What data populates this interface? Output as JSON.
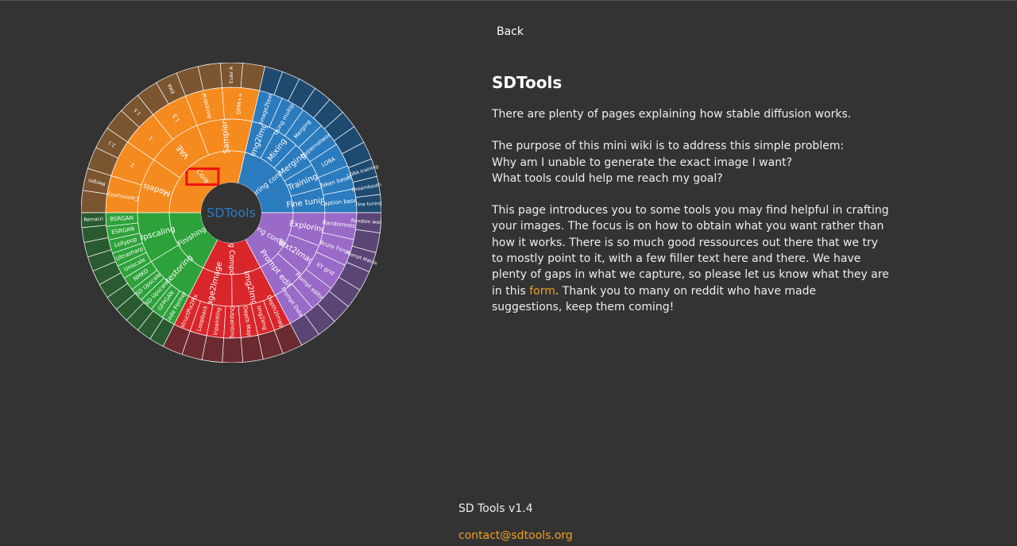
{
  "nav": {
    "back_label": "Back"
  },
  "content": {
    "title": "SDTools",
    "intro": "There are plenty of pages explaining how stable diffusion works.",
    "purpose_lines": [
      "The purpose of this mini wiki is to address this simple problem:",
      "Why am I unable to generate the exact image I want?",
      "What tools could help me reach my goal?"
    ],
    "description_before_link": "This page introduces you to some tools you may find helpful in crafting your images. The focus is on how to obtain what you want rather than how it works. There is so much good ressources out there that we try to mostly point to it, with a few filler text here and there. We have plenty of gaps in what we capture, so please let us know what they are in this ",
    "form_link_label": "form",
    "description_after_link": ". Thank you to many on reddit who have made suggestions, keep them coming!"
  },
  "footer": {
    "version": "SD Tools v1.4",
    "contact": "contact@sdtools.org"
  },
  "sunburst": {
    "center_label": "SDTools",
    "colors": {
      "core": "#f58a1f",
      "core_dark": "#7a5530",
      "capture": "#2b7bbf",
      "capture_dark": "#1f4a70",
      "explore": "#9a6ac8",
      "explore_dark": "#5a4575",
      "edit": "#d9262b",
      "edit_dark": "#6a2a30",
      "finish": "#2ea23a",
      "finish_dark": "#2a5a30",
      "center": "#333333",
      "highlight": "#ee1111"
    },
    "highlighted": "Core",
    "ring1": [
      {
        "label": "Core",
        "group": "core"
      },
      {
        "label": "Capturing concepts",
        "group": "capture"
      },
      {
        "label": "Exploring composition",
        "group": "explore"
      },
      {
        "label": "Editing Composition",
        "group": "edit"
      },
      {
        "label": "Finishing",
        "group": "finish"
      }
    ],
    "ring2": [
      {
        "label": "Models",
        "group": "core"
      },
      {
        "label": "VAE",
        "group": "core"
      },
      {
        "label": "Samplers",
        "group": "core"
      },
      {
        "label": "Img2Img",
        "group": "capture"
      },
      {
        "label": "Mixing",
        "group": "capture"
      },
      {
        "label": "Merging",
        "group": "capture"
      },
      {
        "label": "Training",
        "group": "capture"
      },
      {
        "label": "Fine tuning",
        "group": "capture"
      },
      {
        "label": "Exploring",
        "group": "explore"
      },
      {
        "label": "Text2Image",
        "group": "explore"
      },
      {
        "label": "Prompt editing",
        "group": "explore"
      },
      {
        "label": "Img2Img",
        "group": "edit"
      },
      {
        "label": "Image2Image",
        "group": "edit"
      },
      {
        "label": "Restoring",
        "group": "finish"
      },
      {
        "label": "Upscaling",
        "group": "finish"
      }
    ],
    "ring3": [
      {
        "label": "Community",
        "group": "core"
      },
      {
        "label": "2",
        "group": "core"
      },
      {
        "label": "1",
        "group": "core"
      },
      {
        "label": "1.5",
        "group": "core"
      },
      {
        "label": "Ancestral",
        "group": "core"
      },
      {
        "label": "DPM++",
        "group": "core"
      },
      {
        "label": "Image2text",
        "group": "capture"
      },
      {
        "label": "Using multiple",
        "group": "capture"
      },
      {
        "label": "Merging",
        "group": "capture"
      },
      {
        "label": "Hypernetwork",
        "group": "capture"
      },
      {
        "label": "LORA",
        "group": "capture"
      },
      {
        "label": "Token based",
        "group": "capture"
      },
      {
        "label": "Caption based",
        "group": "capture"
      },
      {
        "label": "Randomness",
        "group": "explore"
      },
      {
        "label": "Brute Force",
        "group": "explore"
      },
      {
        "label": "XY grid",
        "group": "explore"
      },
      {
        "label": "Prompt editing",
        "group": "explore"
      },
      {
        "label": "Prompt Delay",
        "group": "explore"
      },
      {
        "label": "Depth2Image",
        "group": "edit"
      },
      {
        "label": "Img2Img",
        "group": "edit"
      },
      {
        "label": "Depth Map",
        "group": "edit"
      },
      {
        "label": "Outpainting",
        "group": "edit"
      },
      {
        "label": "Inpainting",
        "group": "edit"
      },
      {
        "label": "Loopback",
        "group": "edit"
      },
      {
        "label": "InstructPix2Pix",
        "group": "edit"
      },
      {
        "label": "Code Former",
        "group": "finish"
      },
      {
        "label": "GFPGAN",
        "group": "finish"
      },
      {
        "label": "SD Upscale",
        "group": "finish"
      },
      {
        "label": "SD Upscale",
        "group": "finish"
      },
      {
        "label": "NMKD",
        "group": "finish"
      },
      {
        "label": "Uniscale",
        "group": "finish"
      },
      {
        "label": "Ultrasharp",
        "group": "finish"
      },
      {
        "label": "Lollypop",
        "group": "finish"
      },
      {
        "label": "ESRGAN",
        "group": "finish"
      },
      {
        "label": "BSRGAN",
        "group": "finish"
      }
    ],
    "ring4": [
      {
        "label": "",
        "group": "core"
      },
      {
        "label": "Merges",
        "group": "core"
      },
      {
        "label": "",
        "group": "core"
      },
      {
        "label": "2.1",
        "group": "core"
      },
      {
        "label": "",
        "group": "core"
      },
      {
        "label": "1.5",
        "group": "core"
      },
      {
        "label": "",
        "group": "core"
      },
      {
        "label": "EMA",
        "group": "core"
      },
      {
        "label": "",
        "group": "core"
      },
      {
        "label": "",
        "group": "core"
      },
      {
        "label": "Euler A",
        "group": "core"
      },
      {
        "label": "",
        "group": "core"
      },
      {
        "label": "",
        "group": "capture"
      },
      {
        "label": "",
        "group": "capture"
      },
      {
        "label": "",
        "group": "capture"
      },
      {
        "label": "",
        "group": "capture"
      },
      {
        "label": "",
        "group": "capture"
      },
      {
        "label": "",
        "group": "capture"
      },
      {
        "label": "",
        "group": "capture"
      },
      {
        "label": "",
        "group": "capture"
      },
      {
        "label": "LORA training",
        "group": "capture"
      },
      {
        "label": "Dreambooth",
        "group": "capture"
      },
      {
        "label": "Fine tuning",
        "group": "capture"
      },
      {
        "label": "Random words",
        "group": "explore"
      },
      {
        "label": "",
        "group": "explore"
      },
      {
        "label": "Prompt Matrix",
        "group": "explore"
      },
      {
        "label": "",
        "group": "explore"
      },
      {
        "label": "",
        "group": "explore"
      },
      {
        "label": "",
        "group": "explore"
      },
      {
        "label": "",
        "group": "explore"
      },
      {
        "label": "",
        "group": "explore"
      },
      {
        "label": "",
        "group": "edit"
      },
      {
        "label": "",
        "group": "edit"
      },
      {
        "label": "",
        "group": "edit"
      },
      {
        "label": "",
        "group": "edit"
      },
      {
        "label": "",
        "group": "edit"
      },
      {
        "label": "",
        "group": "edit"
      },
      {
        "label": "",
        "group": "edit"
      },
      {
        "label": "",
        "group": "finish"
      },
      {
        "label": "",
        "group": "finish"
      },
      {
        "label": "",
        "group": "finish"
      },
      {
        "label": "",
        "group": "finish"
      },
      {
        "label": "",
        "group": "finish"
      },
      {
        "label": "",
        "group": "finish"
      },
      {
        "label": "",
        "group": "finish"
      },
      {
        "label": "",
        "group": "finish"
      },
      {
        "label": "",
        "group": "finish"
      },
      {
        "label": "",
        "group": "finish"
      },
      {
        "label": "Remacri",
        "group": "finish"
      }
    ]
  }
}
